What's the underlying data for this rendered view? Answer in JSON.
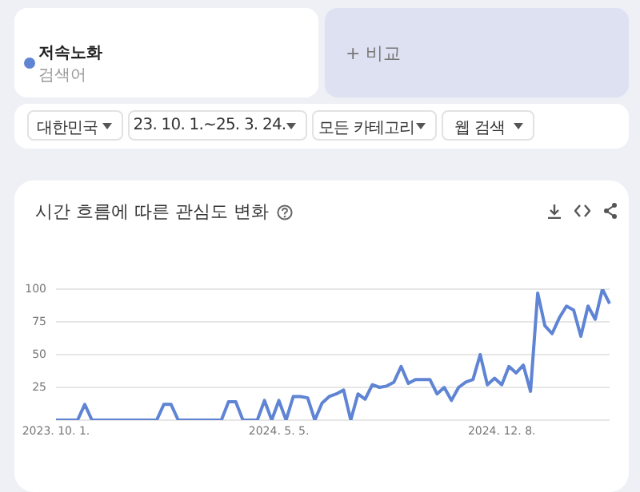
{
  "chart_data": {
    "type": "line",
    "title": "시간 흐름에 따른 관심도 변화",
    "annotations": [
      "저속노화",
      "검색어",
      "+ 비교",
      "대한민국",
      "23. 10. 1.~25. 3. 24.",
      "모든 카테고리",
      "웹 검색"
    ],
    "categories": [
      "2023. 10. 1.",
      null,
      null,
      null,
      null,
      null,
      null,
      null,
      null,
      null,
      null,
      null,
      null,
      null,
      null,
      null,
      null,
      null,
      null,
      null,
      null,
      null,
      null,
      null,
      null,
      null,
      null,
      null,
      null,
      null,
      null,
      "2024. 5. 5.",
      null,
      null,
      null,
      null,
      null,
      null,
      null,
      null,
      null,
      null,
      null,
      null,
      null,
      null,
      null,
      null,
      null,
      null,
      null,
      null,
      null,
      null,
      null,
      null,
      null,
      null,
      null,
      null,
      null,
      null,
      "2024. 12. 8.",
      null,
      null,
      null,
      null,
      null,
      null,
      null,
      null,
      null,
      null,
      null,
      null,
      null,
      null,
      null
    ],
    "series": [
      {
        "color": "#5f84d4",
        "values": [
          0,
          0,
          0,
          0,
          12,
          0,
          0,
          0,
          0,
          0,
          0,
          0,
          0,
          0,
          0,
          12,
          12,
          0,
          0,
          0,
          0,
          0,
          0,
          0,
          14,
          14,
          0,
          0,
          0,
          15,
          0,
          15,
          0,
          18,
          18,
          17,
          0,
          13,
          18,
          20,
          23,
          0,
          20,
          16,
          27,
          25,
          26,
          29,
          41,
          28,
          31,
          31,
          31,
          20,
          25,
          15,
          25,
          29,
          31,
          50,
          27,
          32,
          27,
          41,
          36,
          42,
          22,
          97,
          72,
          66,
          78,
          87,
          84,
          64,
          87,
          77,
          100,
          89
        ]
      }
    ],
    "ylim": [
      0,
      100
    ],
    "yticks": [
      {
        "value": 0,
        "label": null
      },
      25,
      50,
      75,
      100
    ],
    "grid": "y",
    "legend": false,
    "marker": "none",
    "line_style": "solid"
  }
}
